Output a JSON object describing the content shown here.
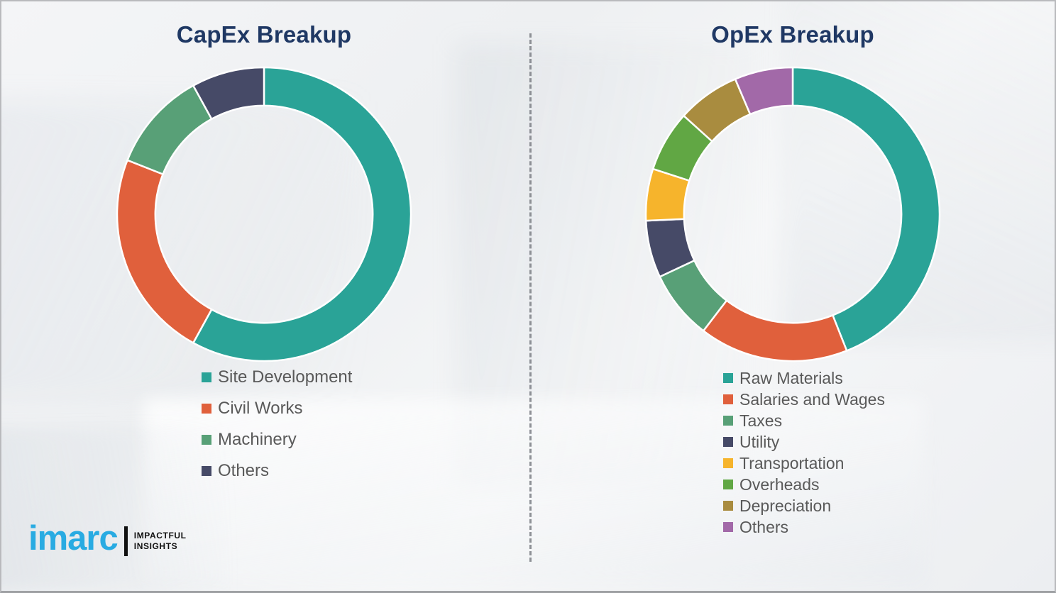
{
  "charts": {
    "capex_title": "CapEx Breakup",
    "opex_title": "OpEx Breakup"
  },
  "chart_data": [
    {
      "type": "pie",
      "subtype": "donut",
      "title": "CapEx Breakup",
      "labels": [
        "Site Development",
        "Civil Works",
        "Machinery",
        "Others"
      ],
      "values": [
        58,
        23,
        11,
        8
      ],
      "colors": [
        "#2aa397",
        "#e0603c",
        "#58a077",
        "#464a67"
      ],
      "start_angle_deg": 0,
      "direction": "clockwise",
      "donut_hole_ratio": 0.74,
      "legend_position": "below-left",
      "data_labels": false
    },
    {
      "type": "pie",
      "subtype": "donut",
      "title": "OpEx Breakup",
      "labels": [
        "Raw Materials",
        "Salaries and Wages",
        "Taxes",
        "Utility",
        "Transportation",
        "Overheads",
        "Depreciation",
        "Others"
      ],
      "values": [
        44,
        16.4,
        7.6,
        6.3,
        5.7,
        6.7,
        6.9,
        6.4
      ],
      "colors": [
        "#2aa397",
        "#e0603c",
        "#58a077",
        "#464a67",
        "#f6b42c",
        "#61a744",
        "#a98c3f",
        "#a269a8"
      ],
      "start_angle_deg": 0,
      "direction": "clockwise",
      "donut_hole_ratio": 0.74,
      "legend_position": "below-left",
      "data_labels": false
    }
  ],
  "branding": {
    "logo_text": "imarc",
    "tagline_line1": "IMPACTFUL",
    "tagline_line2": "INSIGHTS",
    "logo_color": "#29abe2"
  },
  "style": {
    "title_color": "#1f3864",
    "legend_text_color": "#595959",
    "divider_style": "dashed-vertical"
  }
}
